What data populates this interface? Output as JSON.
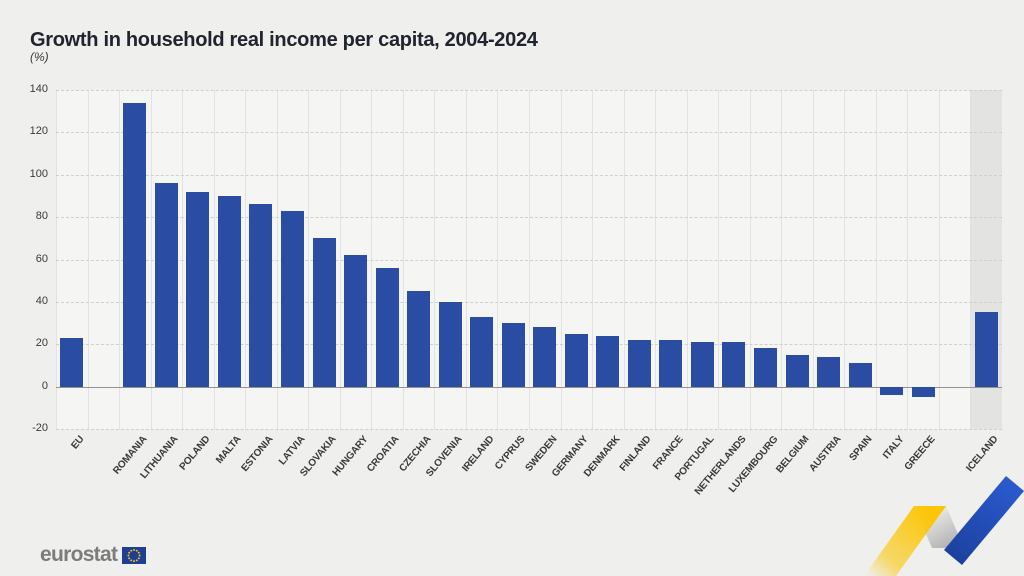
{
  "title": "Growth in household real income per capita, 2004-2024",
  "subtitle": "(%)",
  "footer": {
    "logo_text": "eurostat"
  },
  "colors": {
    "background": "#efefed",
    "plot_background": "#f5f5f3",
    "bar": "#2b4ca3",
    "highlight_band": "#e3e3e1",
    "title_text": "#20242e",
    "axis_text": "#3a3a3a",
    "vertical_gridline": "#e2e2e0",
    "horizontal_gridline": "#cfcfcd",
    "zero_line": "#94948f",
    "logo_text": "#7c7c7c",
    "eu_flag_blue": "#1e3f94",
    "star_yellow": "#ffcc00",
    "ribbon_yellow": "#fcc500",
    "ribbon_blue": "#2451c5",
    "ribbon_gray": "#ababab"
  },
  "chart_data": {
    "type": "bar",
    "title": "Growth in household real income per capita, 2004-2024",
    "ylabel": "(%)",
    "xlabel": "",
    "ylim": [
      -20,
      140
    ],
    "ytick_step": 20,
    "yticks": [
      -20,
      0,
      20,
      40,
      60,
      80,
      100,
      120,
      140
    ],
    "grid": true,
    "legend": "none",
    "categories": [
      "EU",
      "ROMANIA",
      "LITHUANIA",
      "POLAND",
      "MALTA",
      "ESTONIA",
      "LATVIA",
      "SLOVAKIA",
      "HUNGARY",
      "CROATIA",
      "CZECHIA",
      "SLOVENIA",
      "IRELAND",
      "CYPRUS",
      "SWEDEN",
      "GERMANY",
      "DENMARK",
      "FINLAND",
      "FRANCE",
      "PORTUGAL",
      "NETHERLANDS",
      "LUXEMBOURG",
      "BELGIUM",
      "AUSTRIA",
      "SPAIN",
      "ITALY",
      "GREECE",
      "ICELAND"
    ],
    "values": [
      23,
      134,
      96,
      92,
      90,
      86,
      83,
      70,
      62,
      56,
      45,
      40,
      33,
      30,
      28,
      25,
      24,
      22,
      22,
      21,
      21,
      18,
      15,
      14,
      11,
      -4,
      -5,
      35
    ],
    "gap_after": [
      "EU",
      "GREECE"
    ],
    "highlighted_categories": [
      "ICELAND"
    ]
  }
}
